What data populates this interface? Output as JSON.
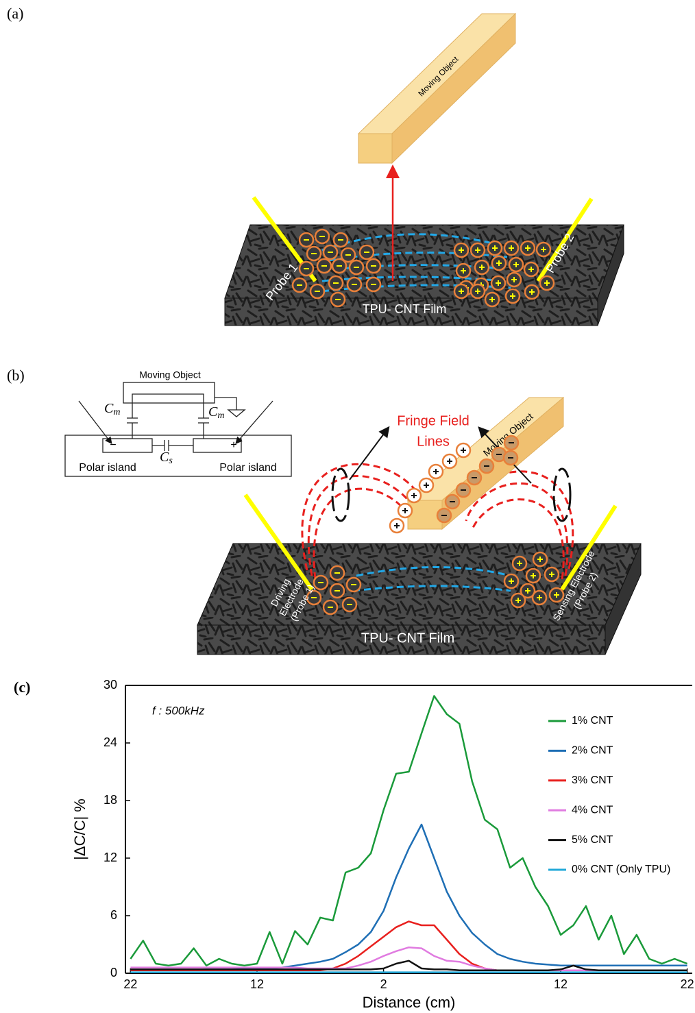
{
  "panel_a": {
    "label": "(a)",
    "moving_object": "Moving Object",
    "probe_1": "Probe 1",
    "probe_2": "Probe 2",
    "film": "TPU- CNT Film"
  },
  "panel_b": {
    "label": "(b)",
    "circuit": {
      "moving_object": "Moving Object",
      "cm_left": {
        "main": "C",
        "sub": "m"
      },
      "cm_right": {
        "main": "C",
        "sub": "m"
      },
      "cs": {
        "main": "C",
        "sub": "s"
      },
      "minus": "−",
      "plus": "+",
      "polar_island_left": "Polar island",
      "polar_island_right": "Polar island"
    },
    "fringe_line_1": "Fringe Field",
    "fringe_line_2": "Lines",
    "moving_object": "Moving Object",
    "driving": [
      "Driving",
      "Electrode",
      "(Probe 1)"
    ],
    "sensing": [
      "Sensing Electrode",
      "(Probe 2)"
    ],
    "film": "TPU- CNT Film"
  },
  "panel_c": {
    "label": "(c)"
  },
  "chart_data": {
    "type": "line",
    "annotation": "f : 500kHz",
    "x_label": "Distance (cm)",
    "y_label": "|ΔC/C| %",
    "x": [
      -22,
      -21,
      -20,
      -19,
      -18,
      -17,
      -16,
      -15,
      -14,
      -13,
      -12,
      -11,
      -10,
      -9,
      -8,
      -7,
      -6,
      -5,
      -4,
      -3,
      -2,
      -1,
      0,
      1,
      2,
      3,
      4,
      5,
      6,
      7,
      8,
      9,
      10,
      11,
      12,
      13,
      14,
      15,
      16,
      17,
      18,
      19,
      20,
      21,
      22
    ],
    "xlim": [
      -22.4,
      22.4
    ],
    "xticks": [
      {
        "value": -22,
        "label": "22"
      },
      {
        "value": -12,
        "label": "12"
      },
      {
        "value": -2,
        "label": "2"
      },
      {
        "value": 12,
        "label": "12"
      },
      {
        "value": 22,
        "label": "22"
      }
    ],
    "ylim": [
      0,
      30
    ],
    "yticks": [
      0,
      6,
      12,
      18,
      24,
      30
    ],
    "series": [
      {
        "name": "1% CNT",
        "color": "#1a9a3a",
        "values": [
          1.5,
          3.4,
          1,
          0.8,
          1,
          2.6,
          0.8,
          1.5,
          1,
          0.8,
          1,
          4.3,
          1,
          4.4,
          3,
          5.8,
          5.5,
          10.5,
          11,
          12.5,
          17,
          20.8,
          21,
          25,
          28.9,
          27,
          26,
          20,
          16,
          15,
          11,
          12,
          9,
          7,
          4,
          5,
          7,
          3.5,
          6,
          2,
          4,
          1.5,
          1,
          1.5,
          1
        ]
      },
      {
        "name": "2% CNT",
        "color": "#1f6fb5",
        "values": [
          0.3,
          0.3,
          0.3,
          0.3,
          0.3,
          0.3,
          0.4,
          0.4,
          0.4,
          0.5,
          0.5,
          0.5,
          0.6,
          0.8,
          1,
          1.2,
          1.5,
          2.2,
          3,
          4.3,
          6.5,
          10,
          13,
          15.5,
          12,
          8.5,
          6,
          4.2,
          3,
          2,
          1.5,
          1.2,
          1,
          0.9,
          0.8,
          0.8,
          0.8,
          0.8,
          0.8,
          0.8,
          0.8,
          0.8,
          0.8,
          0.8,
          0.8
        ]
      },
      {
        "name": "3% CNT",
        "color": "#e8201e",
        "values": [
          0.3,
          0.3,
          0.3,
          0.3,
          0.3,
          0.3,
          0.3,
          0.3,
          0.3,
          0.3,
          0.3,
          0.3,
          0.3,
          0.3,
          0.3,
          0.3,
          0.5,
          1,
          1.8,
          2.8,
          3.8,
          4.8,
          5.4,
          5,
          5,
          3.5,
          2,
          1,
          0.5,
          0.3,
          0.3,
          0.3,
          0.3,
          0.3,
          0.3,
          0.3,
          0.3,
          0.3,
          0.3,
          0.3,
          0.3,
          0.3,
          0.3,
          0.3,
          0.3
        ]
      },
      {
        "name": "4% CNT",
        "color": "#e07be0",
        "values": [
          0.6,
          0.6,
          0.6,
          0.6,
          0.6,
          0.6,
          0.6,
          0.6,
          0.6,
          0.6,
          0.6,
          0.6,
          0.6,
          0.6,
          0.5,
          0.5,
          0.5,
          0.5,
          0.8,
          1.2,
          1.8,
          2.3,
          2.7,
          2.6,
          1.8,
          1.3,
          1.2,
          0.8,
          0.5,
          0.3,
          0.3,
          0.3,
          0.3,
          0.3,
          0.3,
          0.3,
          0.3,
          0.3,
          0.3,
          0.3,
          0.3,
          0.3,
          0.3,
          0.3,
          0.3
        ]
      },
      {
        "name": "5% CNT",
        "color": "#111111",
        "values": [
          0.4,
          0.4,
          0.4,
          0.4,
          0.4,
          0.4,
          0.4,
          0.4,
          0.4,
          0.4,
          0.4,
          0.4,
          0.4,
          0.4,
          0.4,
          0.4,
          0.4,
          0.4,
          0.4,
          0.4,
          0.5,
          1,
          1.3,
          0.5,
          0.4,
          0.4,
          0.3,
          0.3,
          0.3,
          0.3,
          0.3,
          0.3,
          0.3,
          0.3,
          0.4,
          0.8,
          0.4,
          0.3,
          0.3,
          0.3,
          0.3,
          0.3,
          0.3,
          0.3,
          0.3
        ]
      },
      {
        "name": "0% CNT (Only TPU)",
        "color": "#22a8d8",
        "values": [
          0.1,
          0.1,
          0.1,
          0.1,
          0.1,
          0.1,
          0.1,
          0.1,
          0.1,
          0.1,
          0.1,
          0.1,
          0.1,
          0.1,
          0.1,
          0.1,
          0.1,
          0.1,
          0.1,
          0.1,
          0.1,
          0.1,
          0.1,
          0.1,
          0.1,
          0.1,
          0.1,
          0.1,
          0.1,
          0.1,
          0.1,
          0.1,
          0.1,
          0.1,
          0.1,
          0.1,
          0.1,
          0.1,
          0.1,
          0.1,
          0.1,
          0.1,
          0.1,
          0.1,
          0.1
        ]
      }
    ]
  }
}
